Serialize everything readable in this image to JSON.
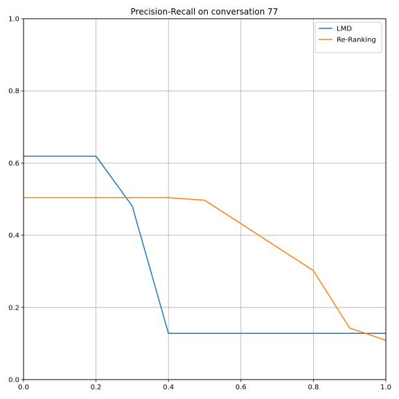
{
  "chart_data": {
    "type": "line",
    "title": "Precision-Recall on conversation 77",
    "xlabel": "",
    "ylabel": "",
    "xlim": [
      0,
      1
    ],
    "ylim": [
      0,
      1
    ],
    "x_ticks": [
      "0.0",
      "0.2",
      "0.4",
      "0.6",
      "0.8",
      "1.0"
    ],
    "y_ticks": [
      "0.0",
      "0.2",
      "0.4",
      "0.6",
      "0.8",
      "1.0"
    ],
    "grid": true,
    "legend_position": "top-right",
    "series": [
      {
        "name": "LMD",
        "color": "#1f77b4",
        "x": [
          0.0,
          0.1,
          0.2,
          0.3,
          0.4,
          0.5,
          0.6,
          0.7,
          0.8,
          0.9,
          1.0
        ],
        "y": [
          0.619,
          0.619,
          0.619,
          0.481,
          0.128,
          0.128,
          0.128,
          0.128,
          0.128,
          0.128,
          0.128
        ]
      },
      {
        "name": "Re-Ranking",
        "color": "#ff7f0e",
        "x": [
          0.0,
          0.1,
          0.2,
          0.3,
          0.4,
          0.5,
          0.6,
          0.7,
          0.8,
          0.9,
          1.0
        ],
        "y": [
          0.504,
          0.504,
          0.504,
          0.504,
          0.504,
          0.497,
          0.432,
          0.367,
          0.302,
          0.143,
          0.109
        ]
      }
    ]
  }
}
